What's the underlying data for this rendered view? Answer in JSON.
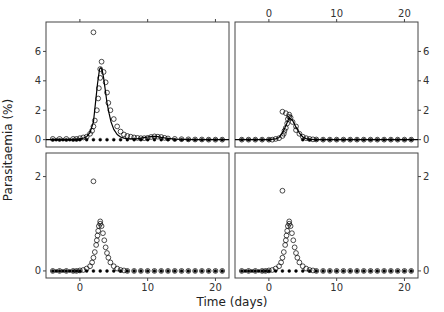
{
  "chart_data": [
    {
      "type": "scatter",
      "ylabel": "Parasitaemia (%)",
      "xlim": [
        -5,
        22
      ],
      "ylim": [
        -0.5,
        8.0
      ],
      "xticks": [
        0,
        10,
        20
      ],
      "yticks": [
        0,
        2,
        4,
        6
      ],
      "tick_labels": "y",
      "series": [
        {
          "type": "scatter",
          "marker": "open",
          "color": "#000000",
          "x": [
            -4,
            -3,
            -2,
            -1,
            -0.5,
            0,
            0.5,
            1,
            1.5,
            1.8,
            2.0,
            2.2,
            2.5,
            2.7,
            2.8,
            3.0,
            3.0,
            3.2,
            3.5,
            3.8,
            4.0,
            4.2,
            4.5,
            5.0,
            5.5,
            6.0,
            6.5,
            7.0,
            7.5,
            8.0,
            8.5,
            9.0,
            9.5,
            10.0,
            10.5,
            11.0,
            11.5,
            12.0,
            12.5,
            13.0,
            14.0,
            15.0,
            16.0,
            17.0,
            18.0,
            19.0,
            20.0,
            21.0,
            2.0
          ],
          "values": [
            0.05,
            0.05,
            0.05,
            0.05,
            0.05,
            0.1,
            0.15,
            0.2,
            0.4,
            0.6,
            0.9,
            1.3,
            2.0,
            2.8,
            3.5,
            4.2,
            4.8,
            5.3,
            4.6,
            3.9,
            3.2,
            2.5,
            2.0,
            1.4,
            0.9,
            0.55,
            0.35,
            0.25,
            0.2,
            0.15,
            0.12,
            0.1,
            0.1,
            0.12,
            0.18,
            0.22,
            0.2,
            0.18,
            0.12,
            0.08,
            0.05,
            0.03,
            0.02,
            0.01,
            0.01,
            0.0,
            0.0,
            0.0,
            7.3
          ]
        },
        {
          "type": "scatter",
          "marker": "filled",
          "color": "#000000",
          "x": [
            -4,
            -3.5,
            -3,
            -2.5,
            -2,
            -1.5,
            -1,
            -0.5,
            0,
            1,
            2,
            3,
            4,
            5,
            6,
            7,
            8,
            9,
            10,
            11,
            12,
            13,
            14,
            15,
            16,
            17,
            18,
            19,
            20,
            21
          ],
          "values": [
            0.0,
            0.0,
            0.0,
            0.0,
            0.0,
            0.0,
            0.0,
            0.0,
            0.0,
            0.0,
            0.0,
            0.0,
            0.0,
            0.0,
            0.0,
            0.0,
            0.0,
            0.0,
            0.0,
            0.0,
            0.0,
            0.0,
            0.0,
            0.0,
            0.0,
            0.0,
            0.0,
            0.0,
            0.0,
            0.0
          ]
        },
        {
          "type": "line",
          "color": "#000000",
          "x": [
            -5,
            -4,
            -3,
            -2,
            -1,
            -0.5,
            0,
            0.5,
            1,
            1.5,
            2,
            2.3,
            2.6,
            2.9,
            3.1,
            3.3,
            3.5,
            3.8,
            4.0,
            4.3,
            4.6,
            5.0,
            5.5,
            6,
            6.5,
            7,
            7.5,
            8,
            8.5,
            9,
            9.5,
            10,
            10.5,
            11,
            11.5,
            12,
            13,
            14,
            15,
            17,
            20,
            22
          ],
          "values": [
            0,
            0,
            0,
            0,
            0,
            0,
            0.05,
            0.1,
            0.2,
            0.5,
            1.2,
            2.5,
            3.8,
            4.8,
            4.9,
            4.7,
            4.2,
            3.2,
            2.5,
            1.8,
            1.2,
            0.7,
            0.35,
            0.18,
            0.1,
            0.06,
            0.05,
            0.05,
            0.07,
            0.1,
            0.14,
            0.18,
            0.2,
            0.22,
            0.2,
            0.15,
            0.08,
            0.04,
            0.02,
            0.0,
            0.0,
            0.0
          ]
        }
      ]
    },
    {
      "type": "scatter",
      "xlim": [
        -5,
        22
      ],
      "ylim": [
        -0.5,
        8.0
      ],
      "xticks": [
        0,
        10,
        20
      ],
      "yticks": [
        0,
        2,
        4,
        6
      ],
      "series": [
        {
          "type": "scatter",
          "marker": "open",
          "color": "#000000",
          "x": [
            -4,
            -3,
            -2,
            -1,
            0,
            0.5,
            1,
            1.5,
            2.0,
            2.2,
            2.3,
            2.5,
            2.7,
            2.8,
            3.0,
            3.0,
            3.2,
            3.5,
            4.0,
            4.0,
            4.5,
            5.0,
            5.5,
            6.0,
            6.5,
            7.0,
            8.0,
            9.0,
            10.0,
            11.0,
            12.0,
            13.0,
            14.0,
            15.0,
            16.0,
            17.0,
            18.0,
            19.0,
            20.0,
            21.0,
            2.0,
            2.5
          ],
          "values": [
            0.0,
            0.0,
            0.0,
            0.0,
            0.0,
            0.0,
            0.05,
            0.1,
            0.25,
            0.4,
            0.6,
            0.8,
            1.1,
            1.4,
            1.55,
            1.7,
            1.5,
            1.2,
            0.9,
            0.65,
            0.4,
            0.2,
            0.1,
            0.05,
            0.02,
            0.01,
            0.0,
            0.0,
            0.0,
            0.0,
            0.0,
            0.0,
            0.0,
            0.0,
            0.0,
            0.0,
            0.0,
            0.0,
            0.0,
            0.0,
            1.9,
            1.8
          ]
        },
        {
          "type": "scatter",
          "marker": "filled",
          "color": "#000000",
          "x": [
            -4,
            -3,
            -2,
            -1,
            0,
            5,
            6,
            7,
            8,
            9,
            10,
            11,
            12,
            13,
            14,
            15,
            16,
            17,
            18,
            19,
            20,
            21
          ],
          "values": [
            0.0,
            0.0,
            0.0,
            0.0,
            0.0,
            0.0,
            0.0,
            0.0,
            0.0,
            0.0,
            0.0,
            0.0,
            0.0,
            0.0,
            0.0,
            0.0,
            0.0,
            0.0,
            0.0,
            0.0,
            0.0,
            0.0
          ]
        },
        {
          "type": "line",
          "color": "#000000",
          "x": [
            -5,
            -4,
            -3,
            -2,
            -1,
            0,
            1,
            1.5,
            2,
            2.5,
            3,
            3.5,
            4,
            4.5,
            5,
            5.5,
            6,
            7,
            8,
            10,
            15,
            20,
            22
          ],
          "values": [
            0,
            0,
            0,
            0,
            0,
            0.0,
            0.05,
            0.15,
            0.45,
            0.95,
            1.5,
            1.3,
            0.85,
            0.45,
            0.18,
            0.07,
            0.02,
            0.0,
            0.0,
            0.0,
            0.0,
            0.0,
            0.0
          ]
        }
      ]
    },
    {
      "type": "scatter",
      "xlabel": "Time (days)",
      "xlim": [
        -5,
        22
      ],
      "ylim": [
        -0.15,
        2.5
      ],
      "xticks": [
        0,
        10,
        20
      ],
      "yticks": [
        0,
        2
      ],
      "series": [
        {
          "type": "scatter",
          "marker": "open",
          "color": "#000000",
          "x": [
            -4,
            -3,
            -2,
            -1,
            -0.5,
            0,
            0.5,
            1,
            1.5,
            1.8,
            2.0,
            2.2,
            2.4,
            2.5,
            2.6,
            2.7,
            2.8,
            3.0,
            3.0,
            3.2,
            3.4,
            3.6,
            3.8,
            4.0,
            4.2,
            4.5,
            5.0,
            5.5,
            6.0,
            6.5,
            7.0,
            8.0,
            9.0,
            10.0,
            11.0,
            12.0,
            13.0,
            14.0,
            15.0,
            16.0,
            17.0,
            18.0,
            19.0,
            20.0,
            21.0,
            2.0
          ],
          "values": [
            0.0,
            0.0,
            0.0,
            0.0,
            0.0,
            0.01,
            0.02,
            0.05,
            0.1,
            0.18,
            0.28,
            0.4,
            0.55,
            0.65,
            0.75,
            0.85,
            0.95,
            1.0,
            1.05,
            0.95,
            0.8,
            0.65,
            0.5,
            0.38,
            0.28,
            0.18,
            0.1,
            0.05,
            0.02,
            0.01,
            0.0,
            0.0,
            0.0,
            0.0,
            0.0,
            0.0,
            0.0,
            0.0,
            0.0,
            0.0,
            0.0,
            0.0,
            0.0,
            0.0,
            0.0,
            1.9
          ]
        },
        {
          "type": "scatter",
          "marker": "filled",
          "color": "#000000",
          "x": [
            -4,
            -3.5,
            -3,
            -2.5,
            -2,
            -1.5,
            -1,
            -0.5,
            0,
            1,
            2,
            3,
            4,
            5,
            6,
            7,
            8,
            9,
            10,
            11,
            12,
            13,
            14,
            15,
            16,
            17,
            18,
            19,
            20,
            21
          ],
          "values": [
            0.0,
            0.0,
            0.0,
            0.0,
            0.0,
            0.0,
            0.0,
            0.0,
            0.0,
            0.0,
            0.0,
            0.0,
            0.0,
            0.0,
            0.0,
            0.0,
            0.0,
            0.0,
            0.0,
            0.0,
            0.0,
            0.0,
            0.0,
            0.0,
            0.0,
            0.0,
            0.0,
            0.0,
            0.0,
            0.0
          ]
        }
      ]
    },
    {
      "type": "scatter",
      "xlim": [
        -5,
        22
      ],
      "ylim": [
        -0.15,
        2.5
      ],
      "xticks": [
        0,
        10,
        20
      ],
      "yticks": [
        0,
        2
      ],
      "series": [
        {
          "type": "scatter",
          "marker": "open",
          "color": "#000000",
          "x": [
            -4,
            -3,
            -2,
            -1,
            -0.5,
            0,
            0.5,
            1,
            1.5,
            1.8,
            2.0,
            2.2,
            2.4,
            2.5,
            2.6,
            2.7,
            2.8,
            3.0,
            3.0,
            3.2,
            3.4,
            3.6,
            3.8,
            4.0,
            4.2,
            4.5,
            5.0,
            5.5,
            6.0,
            6.5,
            7.0,
            8.0,
            9.0,
            10.0,
            11.0,
            12.0,
            13.0,
            14.0,
            15.0,
            16.0,
            17.0,
            18.0,
            19.0,
            20.0,
            21.0,
            2.0
          ],
          "values": [
            0.0,
            0.0,
            0.0,
            0.0,
            0.0,
            0.01,
            0.02,
            0.05,
            0.1,
            0.18,
            0.28,
            0.4,
            0.55,
            0.65,
            0.75,
            0.85,
            0.95,
            1.0,
            1.05,
            0.95,
            0.8,
            0.65,
            0.5,
            0.38,
            0.28,
            0.18,
            0.1,
            0.05,
            0.02,
            0.01,
            0.0,
            0.0,
            0.0,
            0.0,
            0.0,
            0.0,
            0.0,
            0.0,
            0.0,
            0.0,
            0.0,
            0.0,
            0.0,
            0.0,
            0.0,
            1.7
          ]
        },
        {
          "type": "scatter",
          "marker": "filled",
          "color": "#000000",
          "x": [
            -4,
            -3.5,
            -3,
            -2.5,
            -2,
            -1.5,
            -1,
            -0.5,
            0,
            1,
            2,
            3,
            4,
            5,
            6,
            7,
            8,
            9,
            10,
            11,
            12,
            13,
            14,
            15,
            16,
            17,
            18,
            19,
            20,
            21
          ],
          "values": [
            0.0,
            0.0,
            0.0,
            0.0,
            0.0,
            0.0,
            0.0,
            0.0,
            0.0,
            0.0,
            0.0,
            0.0,
            0.0,
            0.0,
            0.0,
            0.0,
            0.0,
            0.0,
            0.0,
            0.0,
            0.0,
            0.0,
            0.0,
            0.0,
            0.0,
            0.0,
            0.0,
            0.0,
            0.0,
            0.0
          ]
        }
      ]
    }
  ]
}
